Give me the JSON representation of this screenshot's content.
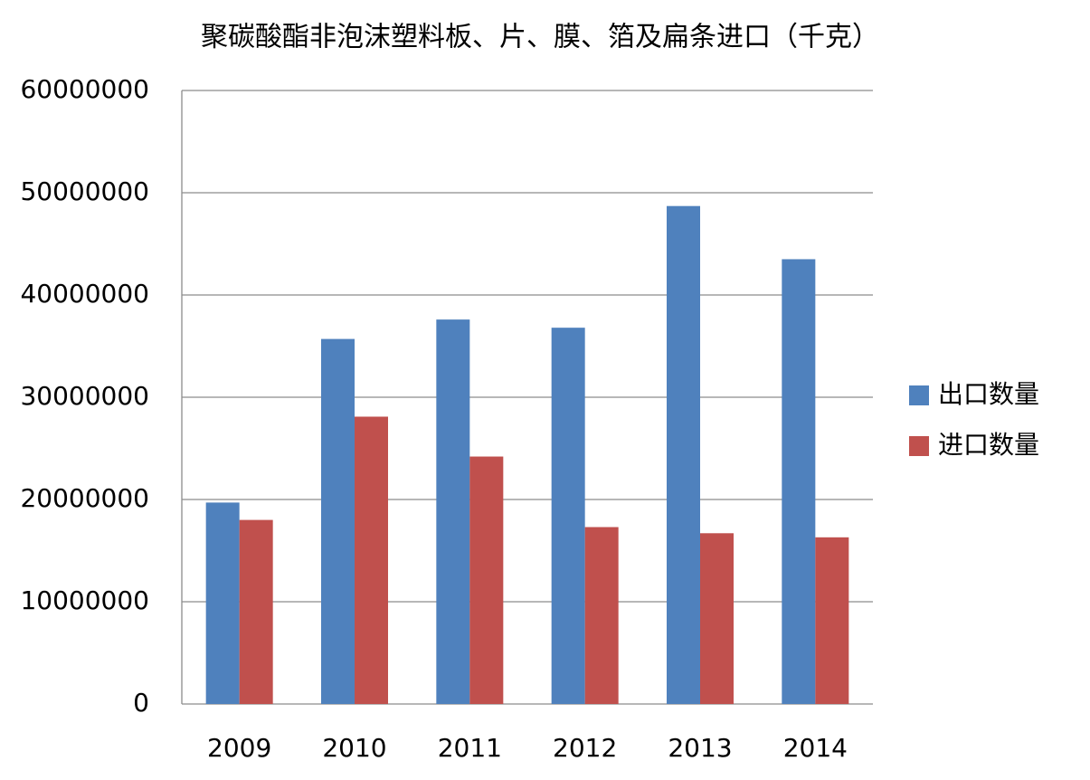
{
  "chart_data": {
    "type": "bar",
    "title": "聚碳酸酯非泡沫塑料板、片、膜、箔及扁条进口（千克）",
    "categories": [
      "2009",
      "2010",
      "2011",
      "2012",
      "2013",
      "2014"
    ],
    "series": [
      {
        "name": "出口数量",
        "color": "#4f81bd",
        "values": [
          19700000,
          35700000,
          37600000,
          36800000,
          48700000,
          43500000
        ]
      },
      {
        "name": "进口数量",
        "color": "#c0504d",
        "values": [
          18000000,
          28100000,
          24200000,
          17300000,
          16700000,
          16300000
        ]
      }
    ],
    "ylim": [
      0,
      60000000
    ],
    "yticks": [
      0,
      10000000,
      20000000,
      30000000,
      40000000,
      50000000,
      60000000
    ],
    "grid": true,
    "legend": "right"
  }
}
